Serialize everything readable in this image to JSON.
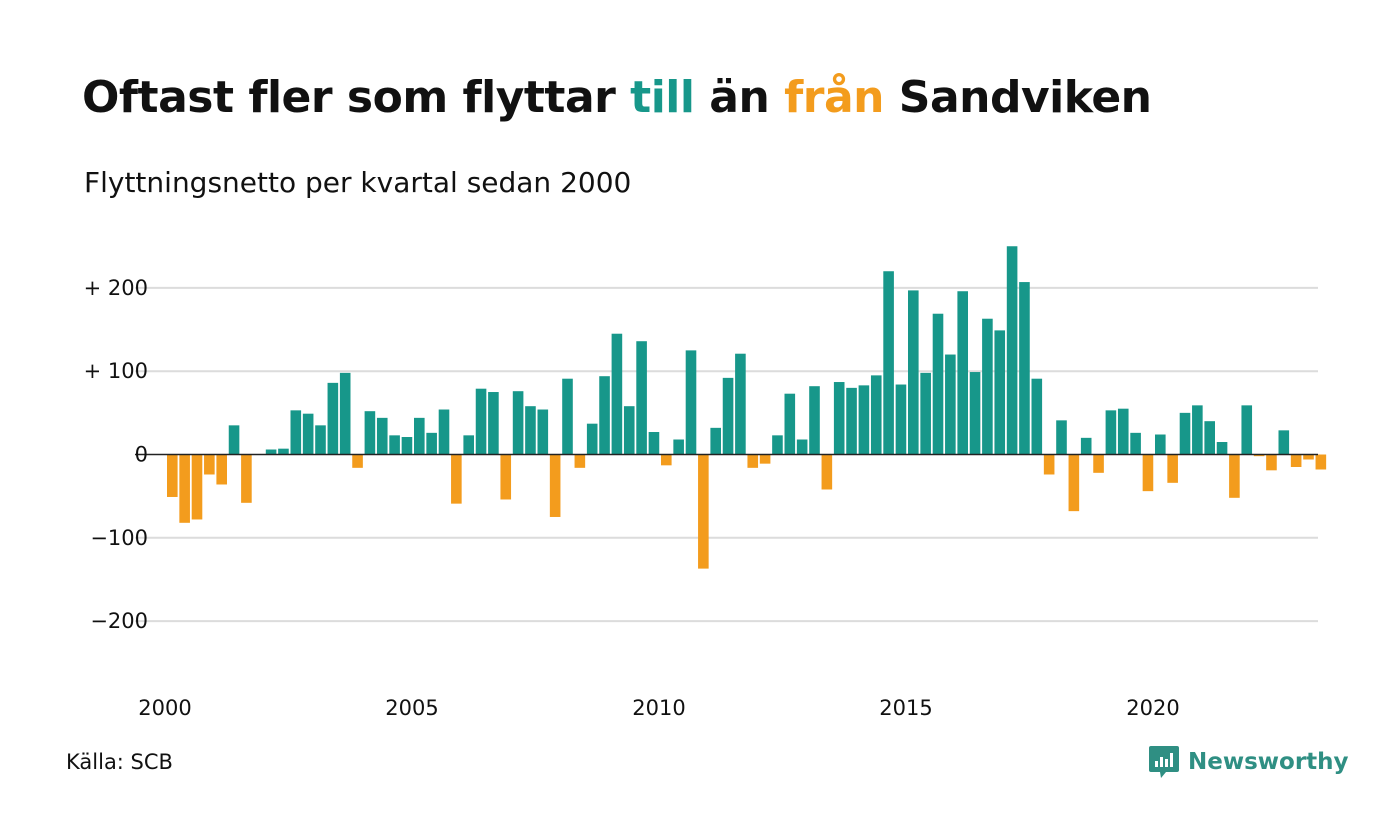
{
  "colors": {
    "positive": "#17978a",
    "negative": "#f39c1d",
    "grid": "#dcdcdc",
    "brand": "#2f8f83"
  },
  "title": {
    "part1": "Oftast fler som flyttar ",
    "part2": "till",
    "part3": " än ",
    "part4": "från",
    "part5": " Sandviken"
  },
  "subtitle": "Flyttningsnetto per kvartal sedan 2000",
  "source": "Källa: SCB",
  "brand": {
    "name": "Newsworthy",
    "icon": "newsworthy-logo-icon"
  },
  "chart_data": {
    "type": "bar",
    "title": "Oftast fler som flyttar till än från Sandviken",
    "subtitle": "Flyttningsnetto per kvartal sedan 2000",
    "xlabel": "",
    "ylabel": "",
    "ylim": [
      -250,
      260
    ],
    "grid": true,
    "legend": "none",
    "yticks": [
      {
        "value": 200,
        "label": "+ 200"
      },
      {
        "value": 100,
        "label": "+ 100"
      },
      {
        "value": 0,
        "label": "0"
      },
      {
        "value": -100,
        "label": "−100"
      },
      {
        "value": -200,
        "label": "−200"
      }
    ],
    "xticks": [
      "2000",
      "2005",
      "2010",
      "2015",
      "2020"
    ],
    "categories": [
      "2000 K1",
      "2000 K2",
      "2000 K3",
      "2000 K4",
      "2001 K1",
      "2001 K2",
      "2001 K3",
      "2001 K4",
      "2002 K1",
      "2002 K2",
      "2002 K3",
      "2002 K4",
      "2003 K1",
      "2003 K2",
      "2003 K3",
      "2003 K4",
      "2004 K1",
      "2004 K2",
      "2004 K3",
      "2004 K4",
      "2005 K1",
      "2005 K2",
      "2005 K3",
      "2005 K4",
      "2006 K1",
      "2006 K2",
      "2006 K3",
      "2006 K4",
      "2007 K1",
      "2007 K2",
      "2007 K3",
      "2007 K4",
      "2008 K1",
      "2008 K2",
      "2008 K3",
      "2008 K4",
      "2009 K1",
      "2009 K2",
      "2009 K3",
      "2009 K4",
      "2010 K1",
      "2010 K2",
      "2010 K3",
      "2010 K4",
      "2011 K1",
      "2011 K2",
      "2011 K3",
      "2011 K4",
      "2012 K1",
      "2012 K2",
      "2012 K3",
      "2012 K4",
      "2013 K1",
      "2013 K2",
      "2013 K3",
      "2013 K4",
      "2014 K1",
      "2014 K2",
      "2014 K3",
      "2014 K4",
      "2015 K1",
      "2015 K2",
      "2015 K3",
      "2015 K4",
      "2016 K1",
      "2016 K2",
      "2016 K3",
      "2016 K4",
      "2017 K1",
      "2017 K2",
      "2017 K3",
      "2017 K4",
      "2018 K1",
      "2018 K2",
      "2018 K3",
      "2018 K4",
      "2019 K1",
      "2019 K2",
      "2019 K3",
      "2019 K4",
      "2020 K1",
      "2020 K2",
      "2020 K3",
      "2020 K4",
      "2021 K1",
      "2021 K2",
      "2021 K3",
      "2021 K4",
      "2022 K1",
      "2022 K2",
      "2022 K3",
      "2022 K4",
      "2023 K1",
      "2023 K2",
      "2023 K3"
    ],
    "values": [
      -51,
      -82,
      -78,
      -24,
      -36,
      35,
      -58,
      0,
      6,
      7,
      53,
      49,
      35,
      86,
      98,
      -16,
      52,
      44,
      23,
      21,
      44,
      26,
      54,
      -59,
      23,
      79,
      75,
      -54,
      76,
      58,
      54,
      -75,
      91,
      -16,
      37,
      94,
      145,
      58,
      136,
      27,
      -13,
      18,
      125,
      -137,
      32,
      92,
      121,
      -16,
      -11,
      23,
      73,
      18,
      82,
      -42,
      87,
      80,
      83,
      95,
      220,
      84,
      197,
      98,
      169,
      120,
      196,
      99,
      163,
      149,
      250,
      207,
      91,
      -24,
      41,
      -68,
      20,
      -22,
      53,
      55,
      26,
      -44,
      24,
      -34,
      50,
      59,
      40,
      15,
      -52,
      59,
      -2,
      -19,
      29,
      -15,
      -6,
      -18,
      0
    ]
  }
}
